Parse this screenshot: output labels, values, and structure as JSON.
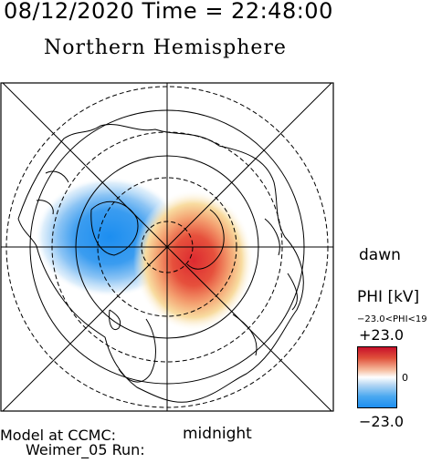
{
  "header": {
    "datetime": "08/12/2020 Time = 22:48:00"
  },
  "title": "Northern Hemisphere",
  "orientation": {
    "right": "dawn",
    "bottom": "midnight"
  },
  "colorbar": {
    "label": "PHI [kV]",
    "range_text": "−23.0<PHI<19",
    "max_label": "+23.0",
    "zero_label": "0",
    "min_label": "−23.0",
    "colors": {
      "high": "#c8102a",
      "mid": "#ffffff",
      "low": "#1c8ef0"
    }
  },
  "footer": {
    "line1": "Model at CCMC:",
    "line2": "Weimer_05 Run:"
  },
  "map": {
    "projection": "polar-stereographic-north",
    "grid": "dashed latitude circles and radial meridians",
    "potential_cells": [
      {
        "sign": "negative",
        "region": "dusk / left",
        "color": "#1c8ef0"
      },
      {
        "sign": "positive",
        "region": "dawn / right",
        "color": "#d4202c"
      }
    ]
  }
}
